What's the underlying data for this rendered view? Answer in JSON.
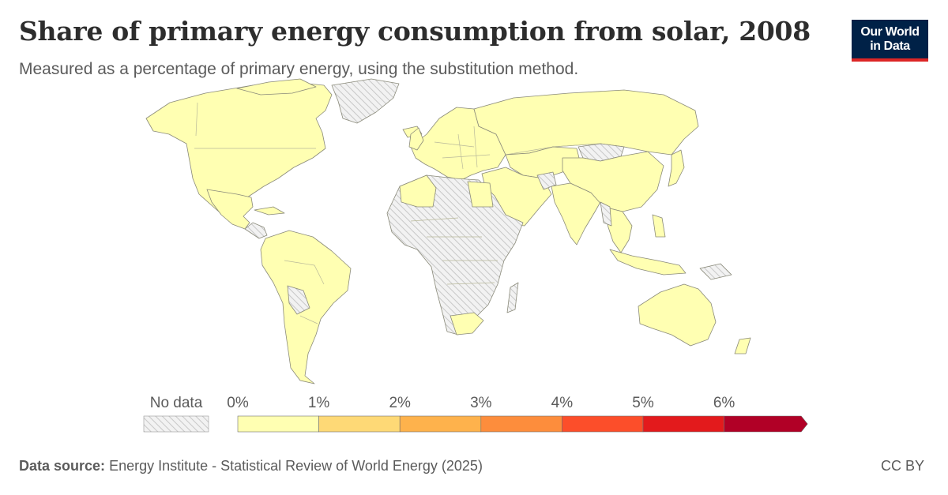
{
  "title": "Share of primary energy consumption from solar, 2008",
  "subtitle": "Measured as a percentage of primary energy, using the substitution method.",
  "logo": {
    "line1": "Our World",
    "line2": "in Data",
    "bg_color": "#002147",
    "accent_color": "#dc2626"
  },
  "legend": {
    "no_data_label": "No data",
    "ticks": [
      "0%",
      "1%",
      "2%",
      "3%",
      "4%",
      "5%",
      "6%"
    ],
    "bins": [
      {
        "range": [
          0,
          1
        ],
        "color": "#ffffb2"
      },
      {
        "range": [
          1,
          2
        ],
        "color": "#fed976"
      },
      {
        "range": [
          2,
          3
        ],
        "color": "#feb24c"
      },
      {
        "range": [
          3,
          4
        ],
        "color": "#fd8d3c"
      },
      {
        "range": [
          4,
          5
        ],
        "color": "#fc4e2a"
      },
      {
        "range": [
          5,
          6
        ],
        "color": "#e31a1c"
      },
      {
        "range": [
          6,
          null
        ],
        "color": "#b10026"
      }
    ]
  },
  "footer": {
    "source_label": "Data source:",
    "source_text": "Energy Institute - Statistical Review of World Energy (2025)",
    "license": "CC BY"
  }
}
